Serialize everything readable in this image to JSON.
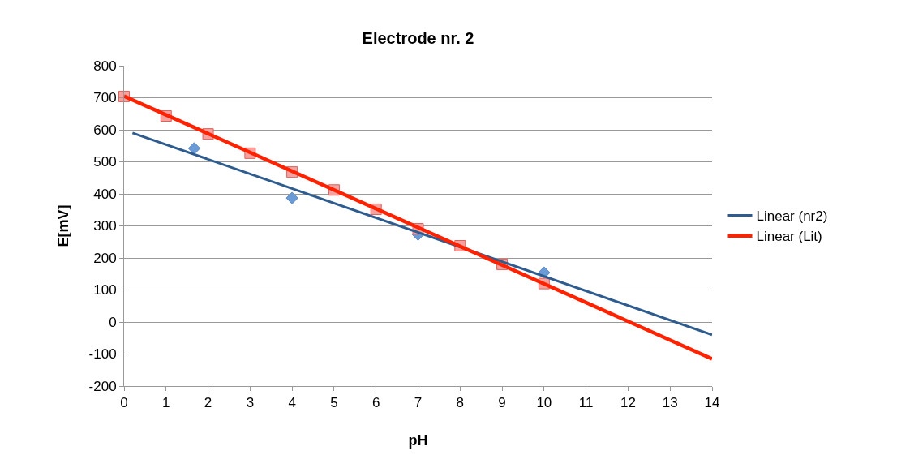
{
  "chart_data": {
    "type": "scatter",
    "title": "Electrode nr. 2",
    "xlabel": "pH",
    "ylabel": "E[mV]",
    "xlim": [
      0,
      14
    ],
    "xticks": [
      0,
      1,
      2,
      3,
      4,
      5,
      6,
      7,
      8,
      9,
      10,
      11,
      12,
      13,
      14
    ],
    "ylim": [
      -200,
      800
    ],
    "yticks": [
      -200,
      -100,
      0,
      100,
      200,
      300,
      400,
      500,
      600,
      700,
      800
    ],
    "grid": "y",
    "legend": "right",
    "series": [
      {
        "marker": "diamond",
        "color": "#6b9bd6",
        "x": [
          1.67,
          4,
          7,
          10
        ],
        "values": [
          542,
          387,
          273,
          154
        ]
      },
      {
        "marker": "square",
        "color": "#f4a3a0",
        "x": [
          0,
          1,
          2,
          3,
          4,
          5,
          6,
          7,
          8,
          9,
          10
        ],
        "values": [
          704,
          643,
          587,
          527,
          468,
          412,
          352,
          291,
          238,
          180,
          120
        ]
      },
      {
        "type": "line",
        "marker": "none",
        "line_style": "solid",
        "name": "Linear (nr2)",
        "color": "#2f5c8f",
        "x": [
          0.2,
          14
        ],
        "values": [
          590,
          -40
        ]
      },
      {
        "type": "line",
        "marker": "none",
        "line_style": "solid",
        "name": "Linear (Lit)",
        "color": "#ff2200",
        "x": [
          0,
          14
        ],
        "values": [
          705,
          -115
        ]
      }
    ]
  }
}
